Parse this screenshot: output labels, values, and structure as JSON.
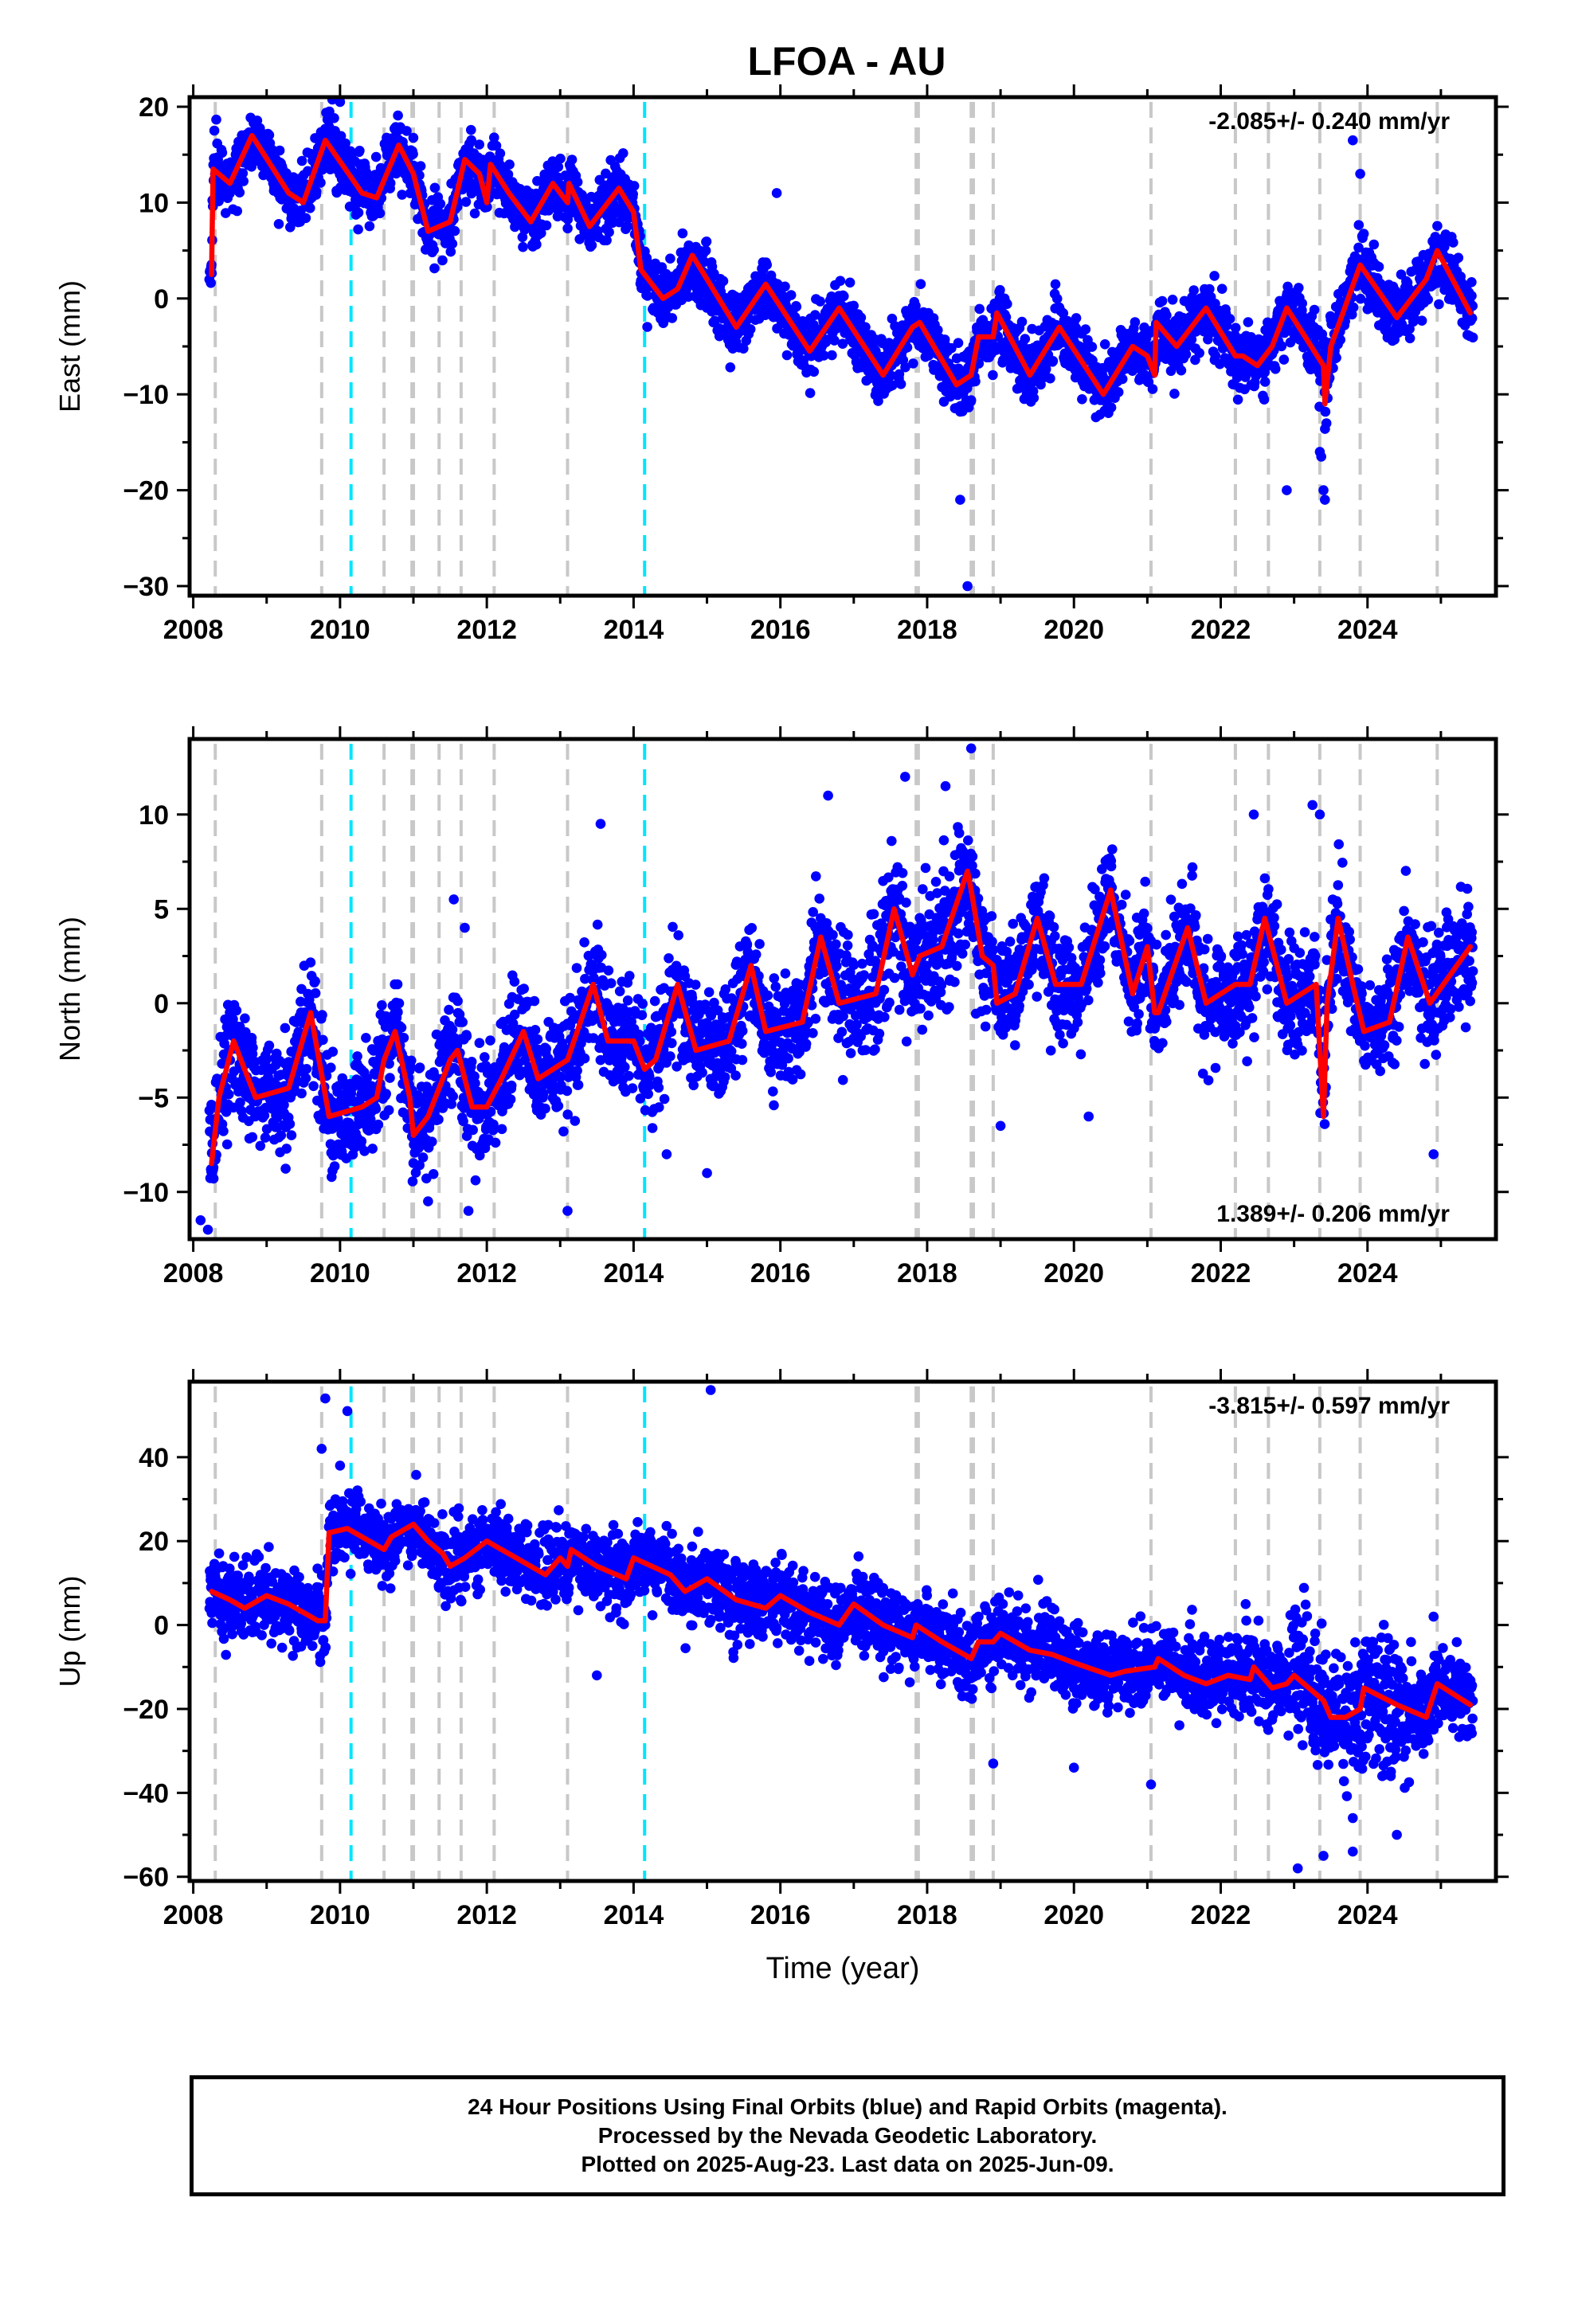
{
  "title": "LFOA - AU",
  "chart_data": [
    {
      "type": "scatter",
      "panel": "east",
      "ylabel": "East (mm)",
      "xlabel": "",
      "ylim": [
        -31,
        21
      ],
      "yticks": [
        20,
        10,
        0,
        -10,
        -20,
        -30
      ],
      "rate_text": "-2.085+/- 0.240 mm/yr",
      "rate_position": "top-right",
      "trend_pts": [
        [
          2008.25,
          2.5
        ],
        [
          2008.27,
          13.5
        ],
        [
          2008.5,
          12
        ],
        [
          2008.8,
          17
        ],
        [
          2009.3,
          11
        ],
        [
          2009.5,
          10
        ],
        [
          2009.8,
          16.5
        ],
        [
          2010.3,
          11
        ],
        [
          2010.5,
          10.5
        ],
        [
          2010.8,
          16
        ],
        [
          2011.0,
          13
        ],
        [
          2011.2,
          7
        ],
        [
          2011.5,
          8
        ],
        [
          2011.7,
          14.5
        ],
        [
          2011.9,
          13
        ],
        [
          2012.0,
          10
        ],
        [
          2012.05,
          14
        ],
        [
          2012.3,
          11
        ],
        [
          2012.6,
          8
        ],
        [
          2012.9,
          12
        ],
        [
          2013.1,
          10
        ],
        [
          2013.12,
          12
        ],
        [
          2013.4,
          7.5
        ],
        [
          2013.8,
          11.5
        ],
        [
          2014.0,
          9
        ],
        [
          2014.1,
          3
        ],
        [
          2014.4,
          0
        ],
        [
          2014.6,
          1
        ],
        [
          2014.8,
          4.5
        ],
        [
          2015.0,
          2
        ],
        [
          2015.4,
          -3
        ],
        [
          2015.8,
          1.5
        ],
        [
          2016.4,
          -5.5
        ],
        [
          2016.8,
          -1
        ],
        [
          2017.4,
          -8
        ],
        [
          2017.8,
          -3
        ],
        [
          2017.9,
          -2.5
        ],
        [
          2018.4,
          -9
        ],
        [
          2018.6,
          -8
        ],
        [
          2018.7,
          -4
        ],
        [
          2018.9,
          -4
        ],
        [
          2018.95,
          -1.5
        ],
        [
          2019.4,
          -8
        ],
        [
          2019.8,
          -3
        ],
        [
          2020.4,
          -10
        ],
        [
          2020.8,
          -5
        ],
        [
          2021.0,
          -6
        ],
        [
          2021.1,
          -8
        ],
        [
          2021.12,
          -2.5
        ],
        [
          2021.4,
          -5
        ],
        [
          2021.8,
          -1
        ],
        [
          2022.2,
          -6
        ],
        [
          2022.3,
          -6
        ],
        [
          2022.5,
          -7
        ],
        [
          2022.7,
          -5
        ],
        [
          2022.9,
          -1
        ],
        [
          2023.4,
          -7
        ],
        [
          2023.42,
          -11
        ],
        [
          2023.5,
          -5
        ],
        [
          2023.9,
          3.5
        ],
        [
          2024.4,
          -2
        ],
        [
          2024.8,
          2
        ],
        [
          2024.95,
          5
        ],
        [
          2025.4,
          -1.5
        ]
      ],
      "outliers": [
        [
          2010.0,
          21
        ],
        [
          2010.0,
          20.5
        ],
        [
          2023.8,
          16.5
        ],
        [
          2023.9,
          13
        ],
        [
          2023.35,
          -16
        ],
        [
          2023.37,
          -16.5
        ],
        [
          2023.4,
          -20
        ],
        [
          2023.42,
          -21
        ],
        [
          2018.55,
          -30
        ],
        [
          2018.45,
          -21
        ],
        [
          2022.9,
          -20
        ],
        [
          2015.95,
          11
        ]
      ]
    },
    {
      "type": "scatter",
      "panel": "north",
      "ylabel": "North (mm)",
      "xlabel": "",
      "ylim": [
        -12.5,
        14
      ],
      "yticks": [
        10,
        5,
        0,
        -5,
        -10
      ],
      "rate_text": "1.389+/- 0.206 mm/yr",
      "rate_position": "bottom-right",
      "trend_pts": [
        [
          2008.25,
          -8.5
        ],
        [
          2008.35,
          -5
        ],
        [
          2008.55,
          -2
        ],
        [
          2008.85,
          -5
        ],
        [
          2009.3,
          -4.5
        ],
        [
          2009.6,
          -0.5
        ],
        [
          2009.85,
          -6
        ],
        [
          2010.3,
          -5.5
        ],
        [
          2010.5,
          -5
        ],
        [
          2010.6,
          -3
        ],
        [
          2010.75,
          -1.5
        ],
        [
          2010.95,
          -5
        ],
        [
          2011.0,
          -7
        ],
        [
          2011.2,
          -6
        ],
        [
          2011.5,
          -3
        ],
        [
          2011.6,
          -2.5
        ],
        [
          2011.8,
          -5.5
        ],
        [
          2012.0,
          -5.5
        ],
        [
          2012.2,
          -4
        ],
        [
          2012.5,
          -1.5
        ],
        [
          2012.7,
          -4
        ],
        [
          2013.1,
          -3
        ],
        [
          2013.45,
          1
        ],
        [
          2013.65,
          -2
        ],
        [
          2014.0,
          -2
        ],
        [
          2014.15,
          -3.5
        ],
        [
          2014.3,
          -3
        ],
        [
          2014.6,
          1
        ],
        [
          2014.85,
          -2.5
        ],
        [
          2015.3,
          -2
        ],
        [
          2015.6,
          2
        ],
        [
          2015.8,
          -1.5
        ],
        [
          2016.3,
          -1
        ],
        [
          2016.55,
          3.5
        ],
        [
          2016.8,
          0
        ],
        [
          2017.3,
          0.5
        ],
        [
          2017.55,
          5
        ],
        [
          2017.8,
          1.5
        ],
        [
          2017.9,
          2.5
        ],
        [
          2018.2,
          3
        ],
        [
          2018.55,
          7
        ],
        [
          2018.6,
          6
        ],
        [
          2018.75,
          2.5
        ],
        [
          2018.9,
          2
        ],
        [
          2018.95,
          0
        ],
        [
          2019.2,
          0.5
        ],
        [
          2019.5,
          4.5
        ],
        [
          2019.75,
          1
        ],
        [
          2020.1,
          1
        ],
        [
          2020.5,
          6
        ],
        [
          2020.8,
          0.5
        ],
        [
          2021.0,
          3
        ],
        [
          2021.1,
          -0.5
        ],
        [
          2021.15,
          -0.5
        ],
        [
          2021.55,
          4
        ],
        [
          2021.8,
          0
        ],
        [
          2022.2,
          1
        ],
        [
          2022.4,
          1
        ],
        [
          2022.6,
          4.5
        ],
        [
          2022.7,
          3
        ],
        [
          2022.9,
          0
        ],
        [
          2023.3,
          1
        ],
        [
          2023.4,
          -6
        ],
        [
          2023.45,
          0
        ],
        [
          2023.6,
          4.5
        ],
        [
          2023.8,
          1
        ],
        [
          2023.95,
          -1.5
        ],
        [
          2024.3,
          -1
        ],
        [
          2024.55,
          3.5
        ],
        [
          2024.85,
          0
        ],
        [
          2025.4,
          3
        ]
      ],
      "outliers": [
        [
          2017.7,
          12
        ],
        [
          2018.6,
          13.5
        ],
        [
          2018.25,
          11.5
        ],
        [
          2016.65,
          11
        ],
        [
          2013.55,
          9.5
        ],
        [
          2022.45,
          10
        ],
        [
          2023.25,
          10.5
        ],
        [
          2023.35,
          10
        ],
        [
          2011.55,
          5.5
        ],
        [
          2011.7,
          4
        ],
        [
          2013.1,
          -11
        ],
        [
          2014.45,
          -8
        ],
        [
          2015.0,
          -9
        ],
        [
          2008.1,
          -11.5
        ],
        [
          2008.2,
          -12
        ],
        [
          2011.75,
          -11
        ],
        [
          2011.2,
          -10.5
        ],
        [
          2019.0,
          -6.5
        ],
        [
          2020.2,
          -6
        ],
        [
          2024.9,
          -8
        ]
      ]
    },
    {
      "type": "scatter",
      "panel": "up",
      "ylabel": "Up (mm)",
      "xlabel": "Time (year)",
      "ylim": [
        -61,
        58
      ],
      "yticks": [
        40,
        20,
        0,
        -20,
        -40,
        -60
      ],
      "rate_text": "-3.815+/- 0.597 mm/yr",
      "rate_position": "top-right",
      "trend_pts": [
        [
          2008.25,
          8
        ],
        [
          2008.5,
          6
        ],
        [
          2008.7,
          4
        ],
        [
          2009.0,
          7
        ],
        [
          2009.3,
          5
        ],
        [
          2009.7,
          1
        ],
        [
          2009.8,
          1
        ],
        [
          2009.85,
          22
        ],
        [
          2010.1,
          23
        ],
        [
          2010.4,
          20
        ],
        [
          2010.6,
          18
        ],
        [
          2010.7,
          21
        ],
        [
          2011.0,
          24
        ],
        [
          2011.2,
          20
        ],
        [
          2011.4,
          17
        ],
        [
          2011.5,
          14
        ],
        [
          2011.7,
          16
        ],
        [
          2012.0,
          20
        ],
        [
          2012.5,
          15
        ],
        [
          2012.8,
          12
        ],
        [
          2013.0,
          16
        ],
        [
          2013.1,
          14
        ],
        [
          2013.15,
          18
        ],
        [
          2013.5,
          14
        ],
        [
          2013.9,
          11
        ],
        [
          2014.0,
          16
        ],
        [
          2014.5,
          12
        ],
        [
          2014.7,
          8
        ],
        [
          2015.0,
          11
        ],
        [
          2015.4,
          6
        ],
        [
          2015.8,
          4
        ],
        [
          2016.0,
          7
        ],
        [
          2016.4,
          3
        ],
        [
          2016.8,
          0
        ],
        [
          2017.0,
          5
        ],
        [
          2017.4,
          0
        ],
        [
          2017.8,
          -3
        ],
        [
          2017.85,
          0
        ],
        [
          2018.2,
          -4
        ],
        [
          2018.6,
          -8
        ],
        [
          2018.7,
          -4
        ],
        [
          2018.9,
          -4
        ],
        [
          2019.0,
          -2
        ],
        [
          2019.4,
          -6
        ],
        [
          2019.7,
          -7
        ],
        [
          2020.0,
          -9
        ],
        [
          2020.5,
          -12
        ],
        [
          2020.7,
          -11
        ],
        [
          2021.1,
          -10
        ],
        [
          2021.15,
          -8
        ],
        [
          2021.5,
          -12
        ],
        [
          2021.8,
          -14
        ],
        [
          2022.1,
          -12
        ],
        [
          2022.4,
          -13
        ],
        [
          2022.45,
          -10
        ],
        [
          2022.7,
          -15
        ],
        [
          2022.9,
          -14
        ],
        [
          2023.0,
          -12
        ],
        [
          2023.4,
          -18
        ],
        [
          2023.5,
          -22
        ],
        [
          2023.7,
          -22
        ],
        [
          2023.9,
          -20
        ],
        [
          2023.95,
          -15
        ],
        [
          2024.4,
          -19
        ],
        [
          2024.8,
          -22
        ],
        [
          2024.95,
          -14
        ],
        [
          2025.4,
          -19
        ]
      ],
      "outliers": [
        [
          2015.05,
          56
        ],
        [
          2009.8,
          54
        ],
        [
          2010.1,
          51
        ],
        [
          2009.75,
          42
        ],
        [
          2010.0,
          38
        ],
        [
          2023.05,
          -58
        ],
        [
          2023.4,
          -55
        ],
        [
          2023.8,
          -54
        ],
        [
          2024.4,
          -50
        ],
        [
          2023.8,
          -46
        ],
        [
          2021.05,
          -38
        ],
        [
          2020.0,
          -34
        ],
        [
          2018.9,
          -33
        ],
        [
          2013.5,
          -12
        ],
        [
          2024.9,
          2
        ]
      ]
    }
  ],
  "x_axis": {
    "xlim": [
      2007.95,
      2025.75
    ],
    "ticks": [
      2008,
      2010,
      2012,
      2014,
      2016,
      2018,
      2020,
      2022,
      2024
    ]
  },
  "event_lines": {
    "gray": [
      2008.3,
      2009.75,
      2010.6,
      2010.98,
      2011.0,
      2011.35,
      2011.65,
      2012.1,
      2013.1,
      2017.85,
      2017.88,
      2018.6,
      2018.63,
      2018.9,
      2021.05,
      2022.2,
      2022.65,
      2023.35,
      2023.9,
      2024.95
    ],
    "cyan": [
      2010.15,
      2014.15
    ]
  },
  "colors": {
    "data_points": "#0000ff",
    "trend_line": "#ff0000",
    "gray_event": "#c8c8c8",
    "cyan_event": "#00e5ff",
    "frame": "#000000"
  },
  "footer": {
    "line1": "24 Hour Positions Using Final Orbits (blue) and Rapid Orbits (magenta).",
    "line2": "Processed by the Nevada Geodetic Laboratory.",
    "line3": "Plotted on 2025-Aug-23. Last data on 2025-Jun-09."
  }
}
